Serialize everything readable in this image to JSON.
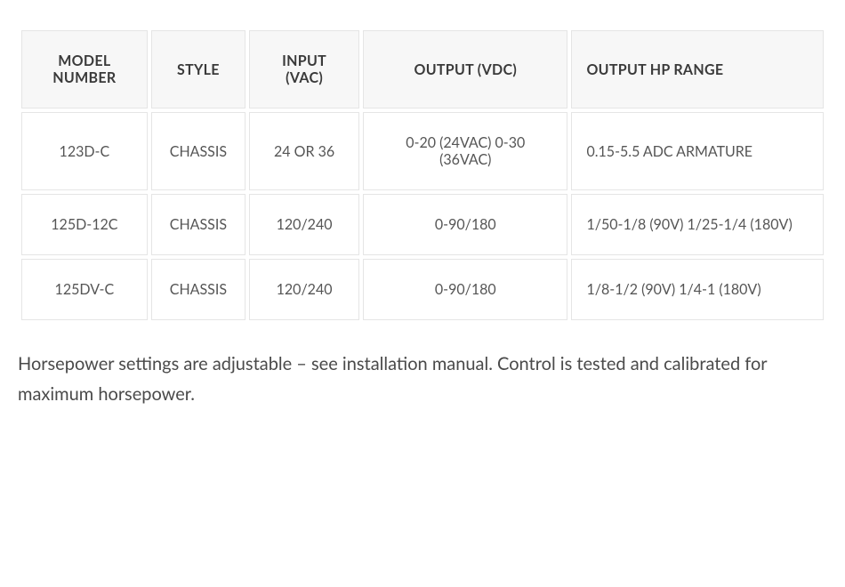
{
  "table": {
    "columns": [
      {
        "label": "MODEL NUMBER",
        "align": "center",
        "class": "col-model"
      },
      {
        "label": "STYLE",
        "align": "center",
        "class": "col-style"
      },
      {
        "label": "INPUT (VAC)",
        "align": "center",
        "class": "col-input"
      },
      {
        "label": "OUTPUT (VDC)",
        "align": "center",
        "class": "col-output-vdc"
      },
      {
        "label": "OUTPUT HP RANGE",
        "align": "left",
        "class": "col-output-hp"
      }
    ],
    "rows": [
      {
        "model": "123D-C",
        "style": "CHASSIS",
        "input": "24 OR 36",
        "output_vdc": "0-20 (24VAC) 0-30 (36VAC)",
        "output_hp": "0.15-5.5 ADC ARMATURE"
      },
      {
        "model": "125D-12C",
        "style": "CHASSIS",
        "input": "120/240",
        "output_vdc": "0-90/180",
        "output_hp": "1/50-1/8 (90V) 1/25-1/4 (180V)"
      },
      {
        "model": "125DV-C",
        "style": "CHASSIS",
        "input": "120/240",
        "output_vdc": "0-90/180",
        "output_hp": "1/8-1/2 (90V) 1/4-1 (180V)"
      }
    ],
    "header_bg": "#f7f7f7",
    "border_color": "#e5e5e5",
    "cell_bg": "#ffffff",
    "text_color": "#4a4a4a"
  },
  "footnote": "Horsepower settings are adjustable – see installation manual. Control is tested and calibrated for maximum horsepower."
}
